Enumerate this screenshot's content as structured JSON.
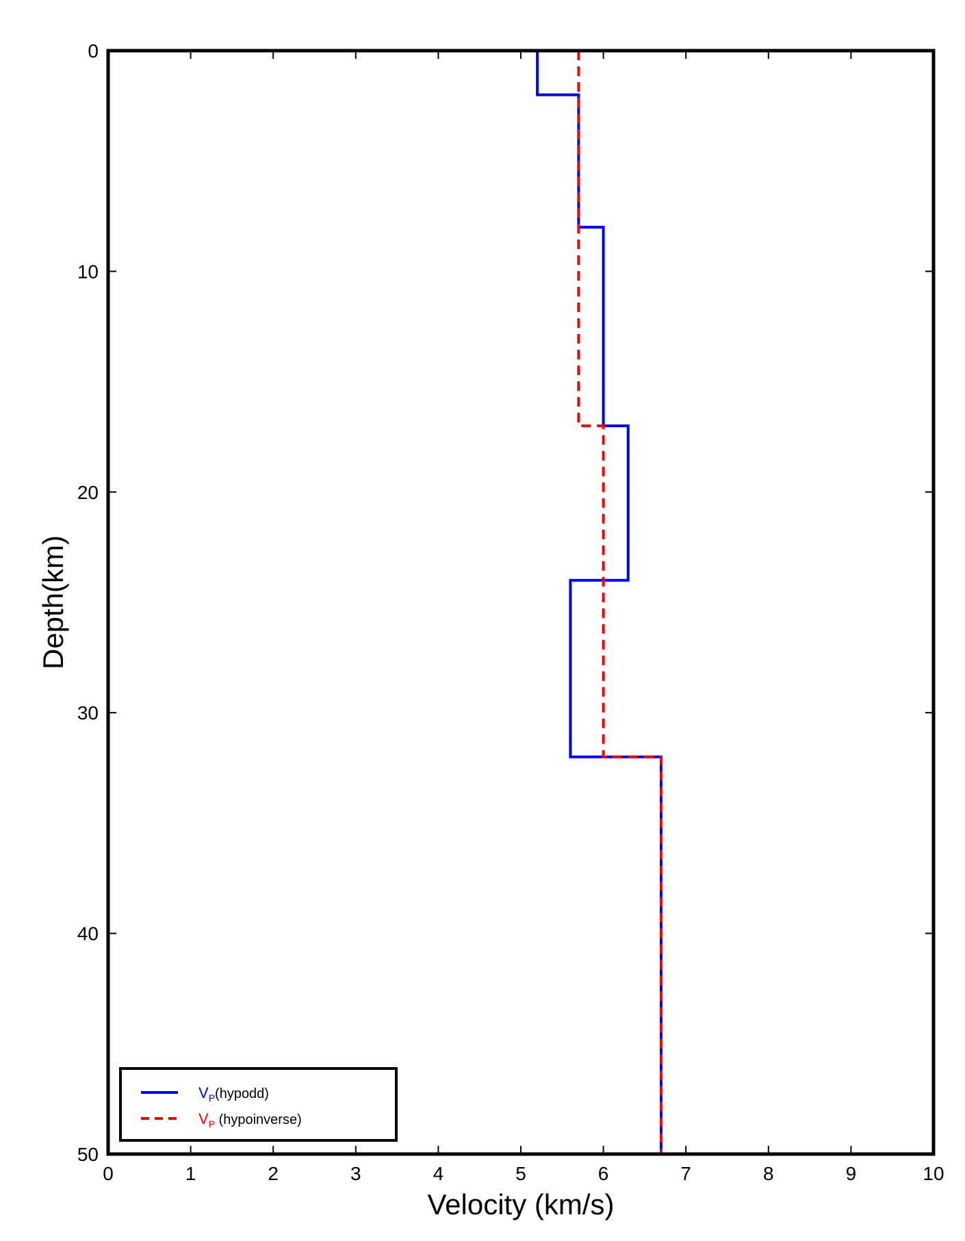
{
  "chart_data": {
    "type": "line",
    "title": "",
    "xlabel": "Velocity (km/s)",
    "ylabel": "Depth(km)",
    "xlim": [
      0,
      10
    ],
    "ylim": [
      0,
      50
    ],
    "y_inverted": true,
    "x_ticks": [
      0,
      1,
      2,
      3,
      4,
      5,
      6,
      7,
      8,
      9,
      10
    ],
    "y_ticks": [
      0,
      10,
      20,
      30,
      40,
      50
    ],
    "grid": false,
    "legend_position": "bottom-left",
    "series": [
      {
        "name": "Vp(hypodd)",
        "legend_symbol": "V",
        "legend_subscript": "P",
        "legend_suffix": "(hypodd)",
        "color": "#0000ff",
        "style": "solid",
        "points": [
          [
            5.2,
            0
          ],
          [
            5.2,
            2
          ],
          [
            5.7,
            2
          ],
          [
            5.7,
            8
          ],
          [
            6.0,
            8
          ],
          [
            6.0,
            17
          ],
          [
            6.3,
            17
          ],
          [
            6.3,
            24
          ],
          [
            5.6,
            24
          ],
          [
            5.6,
            32
          ],
          [
            6.7,
            32
          ],
          [
            6.7,
            50
          ]
        ]
      },
      {
        "name": "Vp (hypoinverse)",
        "legend_symbol": "V",
        "legend_subscript": "P",
        "legend_suffix": " (hypoinverse)",
        "color": "#ff0000",
        "style": "dashed",
        "points": [
          [
            5.7,
            0
          ],
          [
            5.7,
            17
          ],
          [
            6.0,
            17
          ],
          [
            6.0,
            32
          ],
          [
            6.7,
            32
          ],
          [
            6.7,
            50
          ]
        ]
      }
    ]
  }
}
